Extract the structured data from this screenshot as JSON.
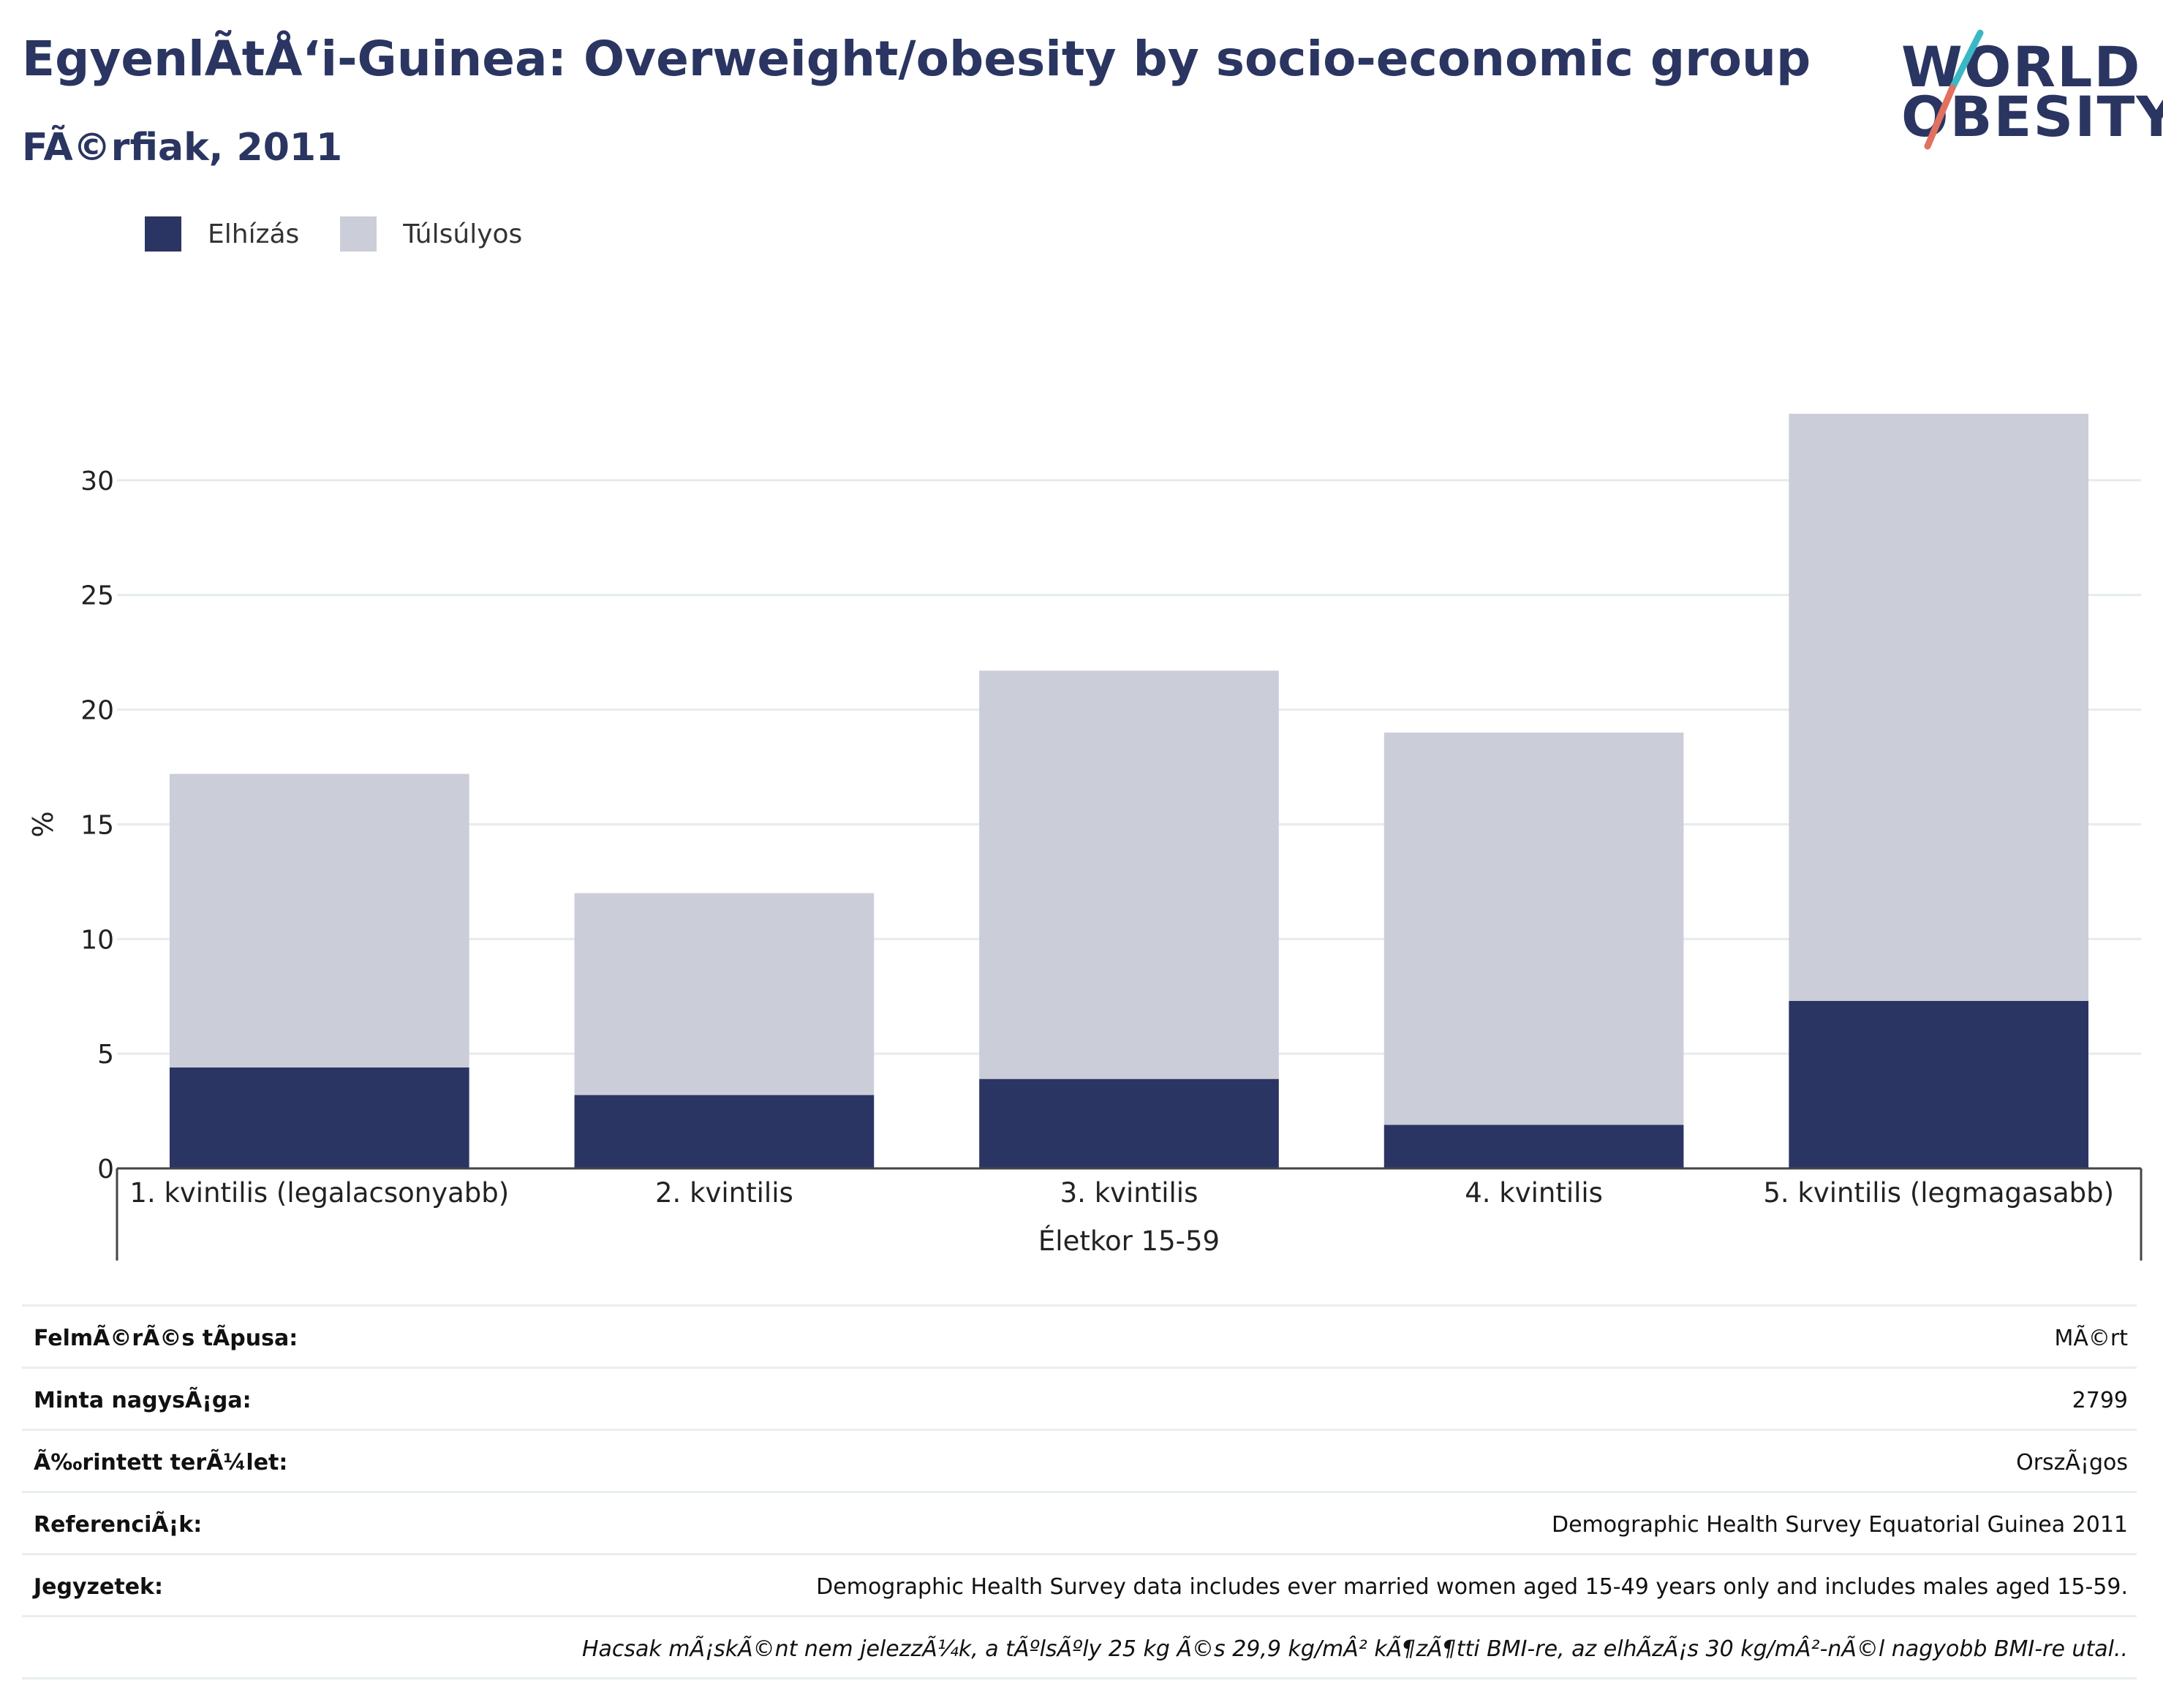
{
  "header": {
    "title": "EgyenlÃtÅ‘i-Guinea: Overweight/obesity by socio-economic group",
    "subtitle": "FÃ©rfiak, 2011",
    "logo_line1": "WORLD",
    "logo_line2": "OBESITY"
  },
  "legend": {
    "items": [
      {
        "label": "Elhízás",
        "color": "#2b3564"
      },
      {
        "label": "Túlsúlyos",
        "color": "#cbcdd9"
      }
    ]
  },
  "chart_data": {
    "type": "bar",
    "stacked": true,
    "categories": [
      "1. kvintilis (legalacsonyabb)",
      "2. kvintilis",
      "3. kvintilis",
      "4. kvintilis",
      "5. kvintilis (legmagasabb)"
    ],
    "series": [
      {
        "name": "Elhízás",
        "color": "#2b3564",
        "values": [
          4.4,
          3.2,
          3.9,
          1.9,
          7.3
        ]
      },
      {
        "name": "Túlsúlyos",
        "color": "#cbcdd9",
        "values": [
          12.8,
          8.8,
          17.8,
          17.1,
          25.6
        ]
      }
    ],
    "ylabel": "%",
    "xlabel": "Életkor 15-59",
    "ylim": [
      0,
      35
    ],
    "yticks": [
      0,
      5,
      10,
      15,
      20,
      25,
      30
    ],
    "grid": true
  },
  "info_table": [
    {
      "label": "FelmÃ©rÃ©s tÃpusa:",
      "value": "MÃ©rt"
    },
    {
      "label": "Minta nagysÃ¡ga:",
      "value": "2799"
    },
    {
      "label": "Ã‰rintett terÃ¼let:",
      "value": "OrszÃ¡gos"
    },
    {
      "label": "ReferenciÃ¡k:",
      "value": "Demographic Health Survey Equatorial Guinea 2011"
    },
    {
      "label": "Jegyzetek:",
      "value": "Demographic Health Survey data includes ever married women aged 15-49 years only and includes males aged 15-59."
    },
    {
      "label": "",
      "value": "Hacsak mÃ¡skÃ©nt nem jelezzÃ¼k, a tÃºlsÃºly 25 kg Ã©s 29,9 kg/mÂ² kÃ¶zÃ¶tti BMI-re, az elhÃzÃ¡s 30 kg/mÂ²-nÃ©l nagyobb BMI-re utal.."
    }
  ]
}
